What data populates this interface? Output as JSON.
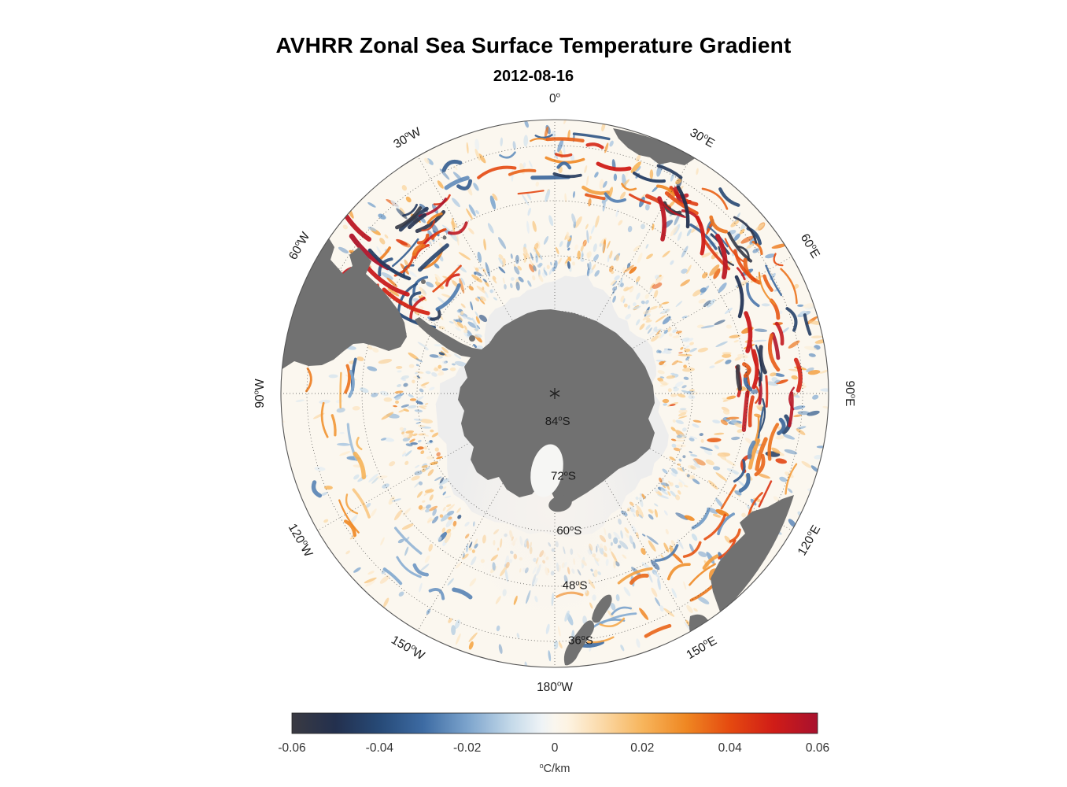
{
  "title": "AVHRR Zonal Sea Surface Temperature Gradient",
  "subtitle": "2012-08-16",
  "chart_data": {
    "type": "heatmap",
    "projection": "south polar stereographic",
    "region": "Southern Ocean / Antarctica",
    "lon_labels": [
      {
        "text": "0°",
        "az": 0
      },
      {
        "text": "30°E",
        "az": 30
      },
      {
        "text": "60°E",
        "az": 60
      },
      {
        "text": "90°E",
        "az": 90
      },
      {
        "text": "120°E",
        "az": 120
      },
      {
        "text": "150°E",
        "az": 150
      },
      {
        "text": "180°W",
        "az": 180
      },
      {
        "text": "150°W",
        "az": 210
      },
      {
        "text": "120°W",
        "az": 240
      },
      {
        "text": "90°W",
        "az": 270
      },
      {
        "text": "60°W",
        "az": 300
      },
      {
        "text": "30°W",
        "az": 330
      }
    ],
    "lat_labels": [
      {
        "text": "84°S",
        "r": 35
      },
      {
        "text": "72°S",
        "r": 105
      },
      {
        "text": "60°S",
        "r": 175
      },
      {
        "text": "48°S",
        "r": 245
      },
      {
        "text": "36°S",
        "r": 315
      }
    ],
    "lat_label_azimuth_deg": 174,
    "grid": {
      "rings_r": [
        35,
        105,
        175,
        245,
        315
      ],
      "meridians_step_deg": 30
    },
    "colorbar": {
      "min": -0.06,
      "max": 0.06,
      "ticks": [
        "-0.06",
        "-0.04",
        "-0.02",
        "0",
        "0.02",
        "0.04",
        "0.06"
      ],
      "unit_label": "°C/km",
      "palette": [
        {
          "v": -0.06,
          "c": "#3a3a42"
        },
        {
          "v": -0.05,
          "c": "#23304e"
        },
        {
          "v": -0.04,
          "c": "#274a77"
        },
        {
          "v": -0.03,
          "c": "#3d6ba3"
        },
        {
          "v": -0.02,
          "c": "#7ba3cc"
        },
        {
          "v": -0.01,
          "c": "#c4d9e9"
        },
        {
          "v": -0.003,
          "c": "#eef3f6"
        },
        {
          "v": 0.0,
          "c": "#faf6ee"
        },
        {
          "v": 0.003,
          "c": "#fdf3e2"
        },
        {
          "v": 0.01,
          "c": "#fbdcae"
        },
        {
          "v": 0.02,
          "c": "#f7b55c"
        },
        {
          "v": 0.03,
          "c": "#ef8722"
        },
        {
          "v": 0.04,
          "c": "#e54a10"
        },
        {
          "v": 0.05,
          "c": "#d01c17"
        },
        {
          "v": 0.06,
          "c": "#a8112e"
        }
      ]
    },
    "colors": {
      "land": "#717171",
      "ice": "#ededed",
      "ocean": "#fbf7ef",
      "background": "#ffffff",
      "grid": "#333333",
      "text": "#1a1a1a"
    }
  }
}
